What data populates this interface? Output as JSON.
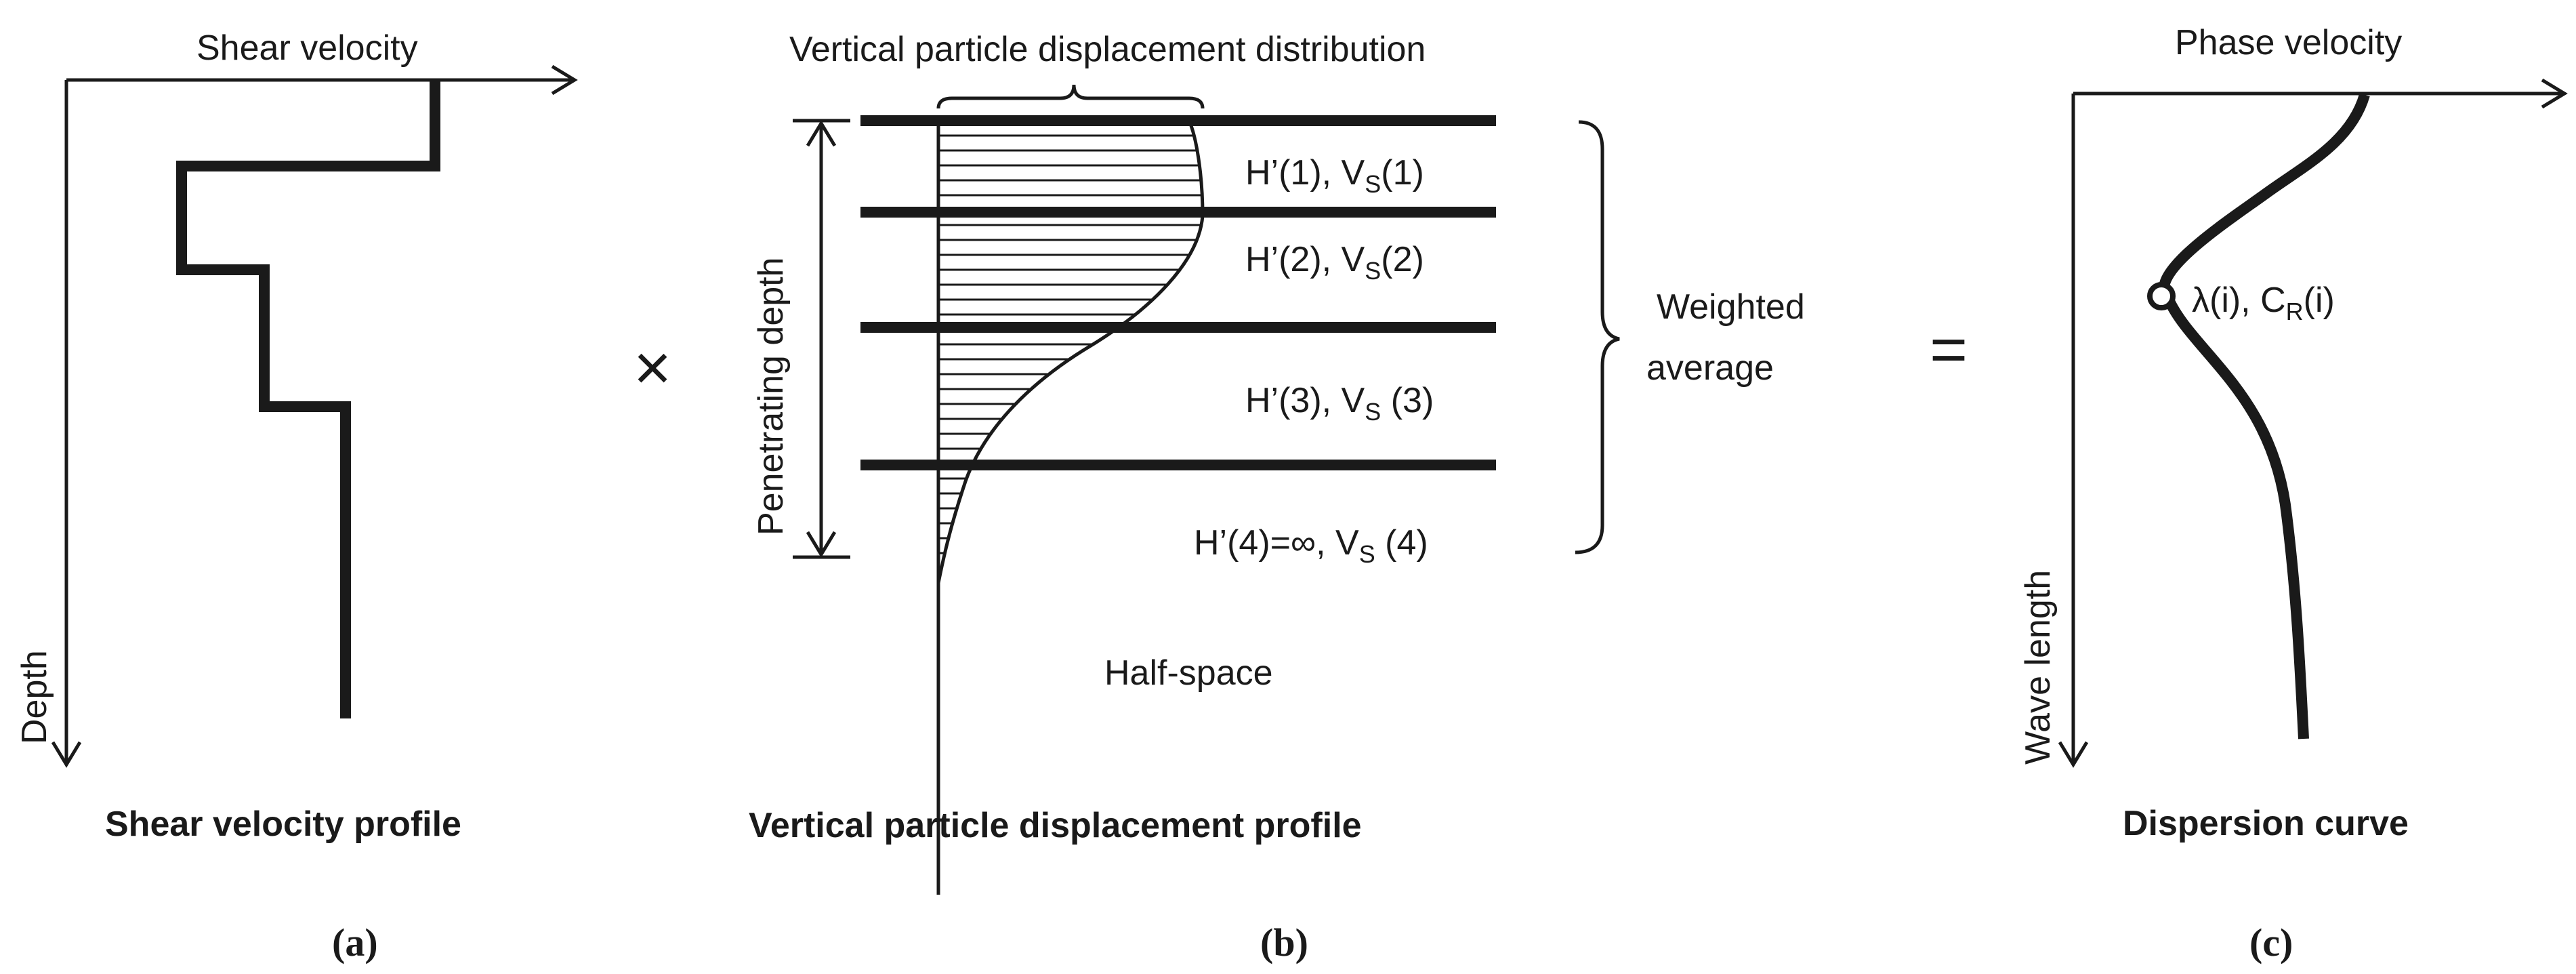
{
  "panel_a": {
    "axis_top_label": "Shear velocity",
    "axis_left_label": "Depth",
    "caption": "Shear velocity profile",
    "letter": "(a)"
  },
  "operator_multiply": "×",
  "panel_b": {
    "top_label": "Vertical particle displacement distribution",
    "depth_label": "Penetrating depth",
    "layers": [
      {
        "h": "H’(1), V",
        "s": "S",
        "rest": "(1)"
      },
      {
        "h": "H’(2), V",
        "s": "S",
        "rest": "(2)"
      },
      {
        "h": "H’(3), V",
        "s": "S",
        "rest": " (3)"
      },
      {
        "h": "H’(4)=∞, V",
        "s": "S",
        "rest": " (4)"
      }
    ],
    "brace_label_line1": "Weighted",
    "brace_label_line2": "average",
    "halfspace_label": "Half-space",
    "caption": "Vertical particle displacement profile",
    "letter": "(b)"
  },
  "operator_equals": "=",
  "panel_c": {
    "axis_top_label": "Phase velocity",
    "axis_left_label": "Wave length",
    "point_label_a": "λ(i), C",
    "point_label_sub": "R",
    "point_label_b": "(i)",
    "caption": "Dispersion curve",
    "letter": "(c)"
  }
}
